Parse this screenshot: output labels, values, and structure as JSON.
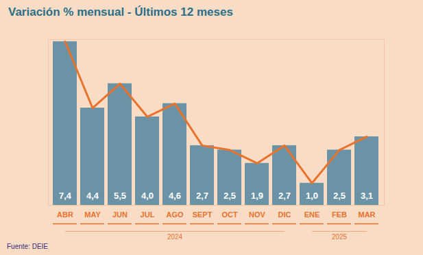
{
  "chart_data": {
    "type": "bar",
    "title": "Variación % mensual - Últimos 12 meses",
    "source": "Fuente: DEIE",
    "categories": [
      "ABR",
      "MAY",
      "JUN",
      "JUL",
      "AGO",
      "SEPT",
      "OCT",
      "NOV",
      "DIC",
      "ENE",
      "FEB",
      "MAR"
    ],
    "series": [
      {
        "type": "bar",
        "color": "#6b93a6",
        "values": [
          7.4,
          4.4,
          5.5,
          4.0,
          4.6,
          2.7,
          2.5,
          1.9,
          2.7,
          1.0,
          2.5,
          3.1
        ],
        "value_labels": [
          "7,4",
          "4,4",
          "5,5",
          "4,0",
          "4,6",
          "2,7",
          "2,5",
          "1,9",
          "2,7",
          "1,0",
          "2,5",
          "3,1"
        ]
      },
      {
        "type": "line",
        "color": "#e9722c",
        "values": [
          7.4,
          4.4,
          5.5,
          4.0,
          4.6,
          2.7,
          2.5,
          1.9,
          2.7,
          1.0,
          2.5,
          3.1
        ]
      }
    ],
    "x_groups": [
      {
        "label": "2024",
        "from": "ABR",
        "to": "DIC"
      },
      {
        "label": "2025",
        "from": "ENE",
        "to": "MAR"
      }
    ],
    "ylim": [
      0,
      7.5
    ],
    "yticks": [],
    "grid": false,
    "data_labels": true,
    "tick_labels": "x"
  }
}
